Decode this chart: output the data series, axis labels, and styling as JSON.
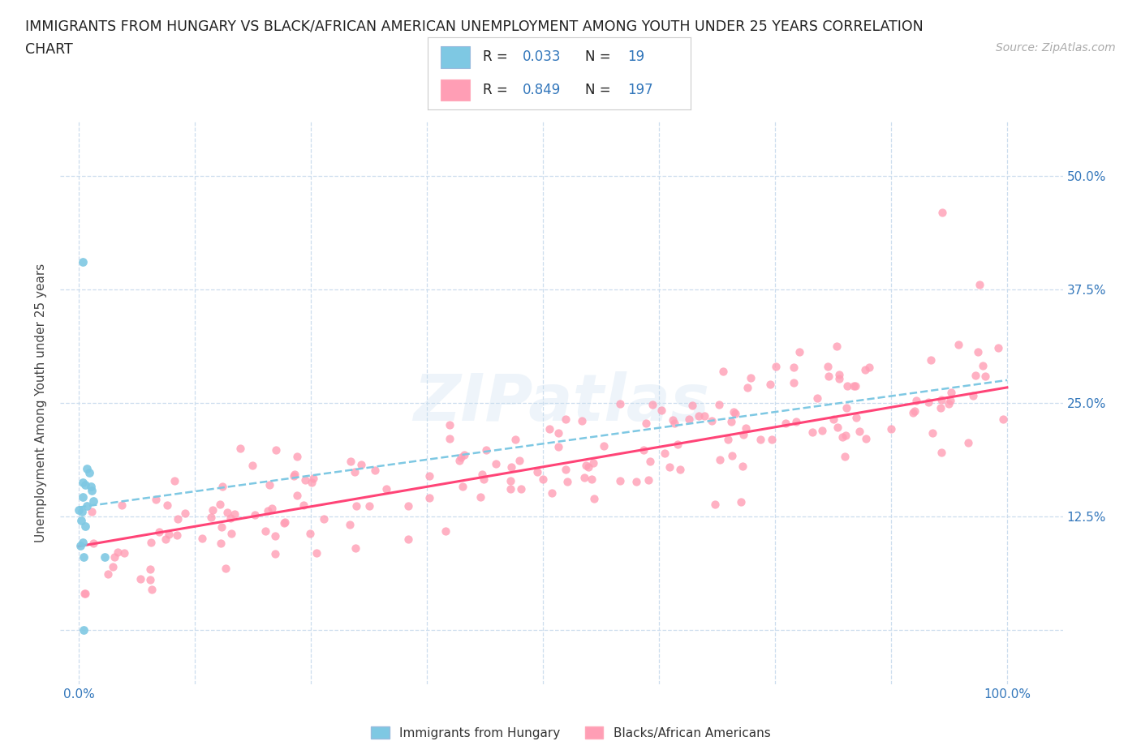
{
  "title_line1": "IMMIGRANTS FROM HUNGARY VS BLACK/AFRICAN AMERICAN UNEMPLOYMENT AMONG YOUTH UNDER 25 YEARS CORRELATION",
  "title_line2": "CHART",
  "source_text": "Source: ZipAtlas.com",
  "watermark": "ZIPatlas",
  "ylabel": "Unemployment Among Youth under 25 years",
  "blue_R": 0.033,
  "blue_N": 19,
  "pink_R": 0.849,
  "pink_N": 197,
  "blue_dot_color": "#7EC8E3",
  "pink_dot_color": "#FF9EB5",
  "trend_blue_color": "#7EC8E3",
  "trend_pink_color": "#FF4477",
  "legend_label_blue": "Immigrants from Hungary",
  "legend_label_pink": "Blacks/African Americans",
  "x_ticks": [
    0,
    0.125,
    0.25,
    0.375,
    0.5,
    0.625,
    0.75,
    0.875,
    1.0
  ],
  "y_ticks": [
    0,
    0.125,
    0.25,
    0.375,
    0.5
  ],
  "y_tick_labels_right": [
    "",
    "12.5%",
    "25.0%",
    "37.5%",
    "50.0%"
  ],
  "xlim": [
    -0.02,
    1.06
  ],
  "ylim": [
    -0.06,
    0.56
  ],
  "background_color": "#ffffff",
  "grid_color": "#ccddee",
  "title_color": "#222222",
  "axis_label_color": "#444444",
  "tick_label_color": "#3377bb",
  "pink_slope": 0.175,
  "pink_intercept": 0.092,
  "blue_trend_y0": 0.135,
  "blue_trend_y1": 0.275
}
